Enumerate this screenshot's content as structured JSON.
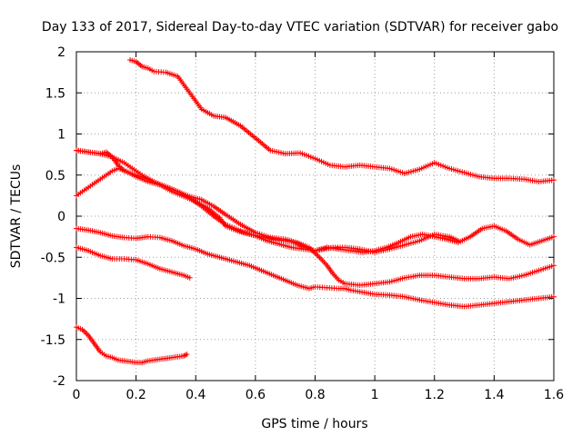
{
  "chart_data": {
    "type": "scatter",
    "title": "Day 133 of 2017, Sidereal Day-to-day VTEC variation (SDTVAR) for receiver gabo",
    "xlabel": "GPS time / hours",
    "ylabel": "SDTVAR / TECUs",
    "xlim": [
      0,
      1.6
    ],
    "ylim": [
      -2,
      2
    ],
    "x_ticks": [
      0,
      0.2,
      0.4,
      0.6,
      0.8,
      1,
      1.2,
      1.4,
      1.6
    ],
    "x_tick_labels": [
      "0",
      "0.2",
      "0.4",
      "0.6",
      "0.8",
      "1",
      "1.2",
      "1.4",
      "1.6"
    ],
    "y_ticks": [
      -2,
      -1.5,
      -1,
      -0.5,
      0,
      0.5,
      1,
      1.5,
      2
    ],
    "y_tick_labels": [
      "-2",
      "-1.5",
      "-1",
      "-0.5",
      "0",
      "0.5",
      "1",
      "1.5",
      "2"
    ],
    "grid": true,
    "marker": "+",
    "color": "#ff0000",
    "series": [
      {
        "name": "s1",
        "x": [
          0.18,
          0.2,
          0.22,
          0.24,
          0.26,
          0.3,
          0.34,
          0.38,
          0.42,
          0.46,
          0.5,
          0.55,
          0.6,
          0.65,
          0.7,
          0.75,
          0.8,
          0.85,
          0.9,
          0.95,
          1.0,
          1.05,
          1.1,
          1.15,
          1.2,
          1.25,
          1.3,
          1.35,
          1.4,
          1.45,
          1.5,
          1.55,
          1.6
        ],
        "y": [
          1.9,
          1.88,
          1.82,
          1.8,
          1.76,
          1.75,
          1.7,
          1.5,
          1.3,
          1.22,
          1.2,
          1.1,
          0.95,
          0.8,
          0.76,
          0.77,
          0.7,
          0.62,
          0.6,
          0.62,
          0.6,
          0.58,
          0.52,
          0.57,
          0.65,
          0.58,
          0.53,
          0.48,
          0.46,
          0.46,
          0.45,
          0.42,
          0.44
        ]
      },
      {
        "name": "s2",
        "x": [
          0.0,
          0.04,
          0.08,
          0.1,
          0.12,
          0.14,
          0.16,
          0.2,
          0.24,
          0.28,
          0.32,
          0.36,
          0.4,
          0.44,
          0.48,
          0.5,
          0.54,
          0.58,
          0.62,
          0.66,
          0.7,
          0.74,
          0.78,
          0.8,
          0.82,
          0.84,
          0.86,
          0.88,
          0.9,
          0.95,
          1.0,
          1.05,
          1.1,
          1.15,
          1.2,
          1.25,
          1.3,
          1.35,
          1.4,
          1.45,
          1.5,
          1.55,
          1.6
        ],
        "y": [
          0.8,
          0.78,
          0.76,
          0.78,
          0.72,
          0.62,
          0.55,
          0.5,
          0.45,
          0.38,
          0.3,
          0.24,
          0.18,
          0.1,
          -0.02,
          -0.12,
          -0.18,
          -0.22,
          -0.25,
          -0.28,
          -0.3,
          -0.32,
          -0.38,
          -0.45,
          -0.52,
          -0.6,
          -0.7,
          -0.78,
          -0.82,
          -0.84,
          -0.82,
          -0.8,
          -0.75,
          -0.72,
          -0.72,
          -0.74,
          -0.76,
          -0.76,
          -0.74,
          -0.76,
          -0.72,
          -0.66,
          -0.6
        ]
      },
      {
        "name": "s3",
        "x": [
          0.0,
          0.02,
          0.04,
          0.06,
          0.08,
          0.1,
          0.12,
          0.14,
          0.16,
          0.18,
          0.2,
          0.22,
          0.24,
          0.26,
          0.3,
          0.34,
          0.38,
          0.42,
          0.46,
          0.5,
          0.55,
          0.6,
          0.65,
          0.7,
          0.72,
          0.75,
          0.78,
          0.8,
          0.83,
          0.86,
          0.9,
          0.95,
          1.0,
          1.05,
          1.1,
          1.15,
          1.2,
          1.25,
          1.28
        ],
        "y": [
          0.25,
          0.3,
          0.35,
          0.4,
          0.45,
          0.5,
          0.55,
          0.58,
          0.56,
          0.52,
          0.48,
          0.45,
          0.42,
          0.4,
          0.36,
          0.3,
          0.24,
          0.2,
          0.12,
          0.02,
          -0.1,
          -0.2,
          -0.26,
          -0.28,
          -0.3,
          -0.35,
          -0.4,
          -0.42,
          -0.4,
          -0.38,
          -0.38,
          -0.4,
          -0.44,
          -0.4,
          -0.35,
          -0.3,
          -0.22,
          -0.25,
          -0.3
        ]
      },
      {
        "name": "s4",
        "x": [
          0.0,
          0.04,
          0.08,
          0.12,
          0.16,
          0.2,
          0.24,
          0.28,
          0.32,
          0.36,
          0.4,
          0.44,
          0.48,
          0.5,
          0.54,
          0.58,
          0.62,
          0.66,
          0.7,
          0.74,
          0.78,
          0.8,
          0.84,
          0.88,
          0.9,
          0.92,
          0.95,
          1.0,
          1.05,
          1.1,
          1.15,
          1.2,
          1.25,
          1.3,
          1.35,
          1.4,
          1.45,
          1.5,
          1.55,
          1.6
        ],
        "y": [
          -0.15,
          -0.17,
          -0.2,
          -0.24,
          -0.26,
          -0.27,
          -0.25,
          -0.26,
          -0.3,
          -0.36,
          -0.4,
          -0.46,
          -0.5,
          -0.52,
          -0.56,
          -0.6,
          -0.66,
          -0.72,
          -0.78,
          -0.84,
          -0.88,
          -0.86,
          -0.87,
          -0.88,
          -0.88,
          -0.9,
          -0.92,
          -0.95,
          -0.96,
          -0.98,
          -1.02,
          -1.05,
          -1.08,
          -1.1,
          -1.08,
          -1.06,
          -1.04,
          -1.02,
          -1.0,
          -0.98
        ]
      },
      {
        "name": "s5",
        "x": [
          0.0,
          0.04,
          0.08,
          0.12,
          0.16,
          0.2,
          0.24,
          0.28,
          0.32,
          0.36,
          0.38
        ],
        "y": [
          -0.38,
          -0.42,
          -0.48,
          -0.52,
          -0.52,
          -0.53,
          -0.58,
          -0.64,
          -0.68,
          -0.72,
          -0.75
        ]
      },
      {
        "name": "s6",
        "x": [
          0.0,
          0.02,
          0.04,
          0.06,
          0.08,
          0.1,
          0.12,
          0.14,
          0.16,
          0.18,
          0.2,
          0.22,
          0.24,
          0.26,
          0.28,
          0.3,
          0.32,
          0.34,
          0.36,
          0.37
        ],
        "y": [
          -1.35,
          -1.38,
          -1.45,
          -1.55,
          -1.65,
          -1.7,
          -1.72,
          -1.75,
          -1.76,
          -1.77,
          -1.78,
          -1.78,
          -1.76,
          -1.75,
          -1.74,
          -1.73,
          -1.72,
          -1.71,
          -1.7,
          -1.68
        ]
      },
      {
        "name": "s7",
        "x": [
          0.0,
          0.04,
          0.08,
          0.12,
          0.16,
          0.18,
          0.2,
          0.22,
          0.26,
          0.3,
          0.34,
          0.38,
          0.42,
          0.46,
          0.5,
          0.55,
          0.6,
          0.64,
          0.68,
          0.72,
          0.76,
          0.8,
          0.84,
          0.88,
          0.92,
          0.96,
          1.0,
          1.04,
          1.08,
          1.12,
          1.16,
          1.2,
          1.24,
          1.28,
          1.32,
          1.36,
          1.4,
          1.44,
          1.48,
          1.52,
          1.56,
          1.6
        ],
        "y": [
          0.8,
          0.78,
          0.76,
          0.72,
          0.65,
          0.6,
          0.55,
          0.5,
          0.42,
          0.36,
          0.3,
          0.22,
          0.12,
          0.0,
          -0.1,
          -0.18,
          -0.24,
          -0.3,
          -0.34,
          -0.38,
          -0.4,
          -0.42,
          -0.38,
          -0.4,
          -0.42,
          -0.44,
          -0.42,
          -0.38,
          -0.32,
          -0.25,
          -0.22,
          -0.25,
          -0.28,
          -0.32,
          -0.25,
          -0.15,
          -0.12,
          -0.18,
          -0.28,
          -0.35,
          -0.3,
          -0.25
        ]
      }
    ]
  }
}
